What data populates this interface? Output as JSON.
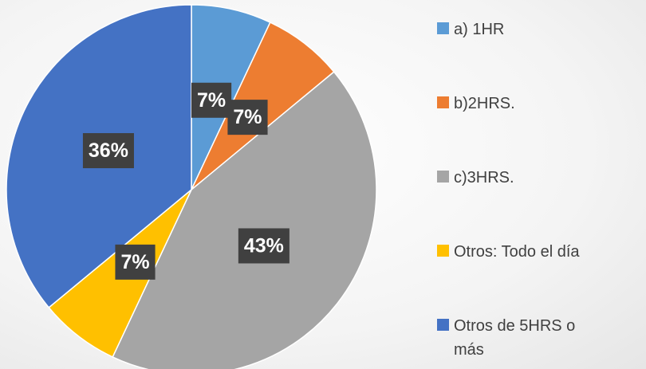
{
  "chart_data": {
    "type": "pie",
    "categories": [
      "a) 1HR",
      "b)2HRS.",
      "c)3HRS.",
      "Otros: Todo el día",
      "Otros de 5HRS o más"
    ],
    "values": [
      7,
      7,
      43,
      7,
      36
    ],
    "value_labels": [
      "7%",
      "7%",
      "43%",
      "7%",
      "36%"
    ],
    "colors": [
      "#5b9bd5",
      "#ed7d31",
      "#a5a5a5",
      "#ffc000",
      "#4472c4"
    ],
    "legend": "right"
  }
}
